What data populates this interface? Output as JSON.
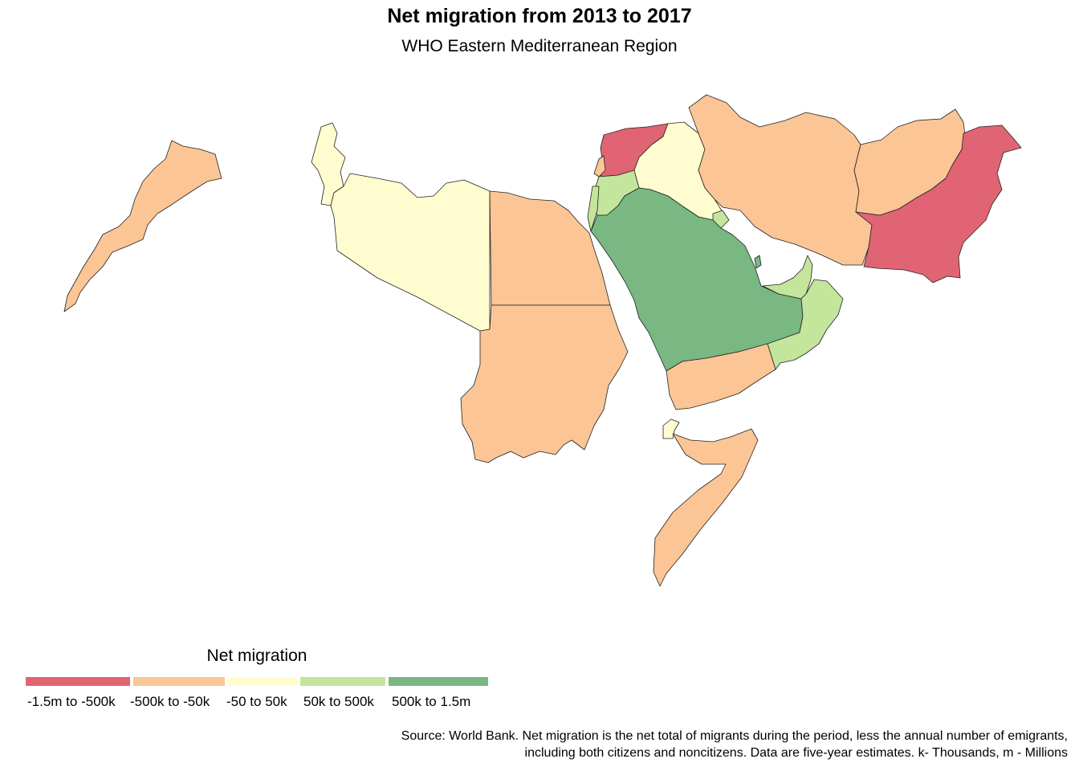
{
  "title": "Net migration from 2013 to 2017",
  "subtitle": "WHO Eastern Mediterranean Region",
  "legend": {
    "title": "Net migration",
    "items": [
      {
        "label": "-1.5m to -500k",
        "color": "#e06473"
      },
      {
        "label": "-500k to -50k",
        "color": "#fbc595"
      },
      {
        "label": "-50 to 50k",
        "color": "#fffdd0"
      },
      {
        "label": "50k to 500k",
        "color": "#c4e59c"
      },
      {
        "label": "500k to  1.5m",
        "color": "#79b783"
      }
    ]
  },
  "source": {
    "line1": "Source: World Bank. Net migration is the net total of migrants during the period, less the annual number of emigrants,",
    "line2": "including both citizens and noncitizens. Data are five-year estimates. k- Thousands, m - Millions"
  },
  "countries": [
    {
      "name": "Morocco",
      "class": "-500k to -50k"
    },
    {
      "name": "Tunisia",
      "class": "-50 to 50k"
    },
    {
      "name": "Libya",
      "class": "-50 to 50k"
    },
    {
      "name": "Egypt",
      "class": "-500k to -50k"
    },
    {
      "name": "Sudan",
      "class": "-500k to -50k"
    },
    {
      "name": "Djibouti",
      "class": "-50 to 50k"
    },
    {
      "name": "Somalia",
      "class": "-500k to -50k"
    },
    {
      "name": "Syria",
      "class": "-1.5m to -500k"
    },
    {
      "name": "Lebanon",
      "class": "-500k to -50k"
    },
    {
      "name": "Jordan",
      "class": "50k to 500k"
    },
    {
      "name": "Palestine",
      "class": "50k to 500k"
    },
    {
      "name": "Iraq",
      "class": "-50 to 50k"
    },
    {
      "name": "Kuwait",
      "class": "50k to 500k"
    },
    {
      "name": "Saudi Arabia",
      "class": "500k to  1.5m"
    },
    {
      "name": "Bahrain",
      "class": "500k to  1.5m"
    },
    {
      "name": "Qatar",
      "class": "50k to 500k"
    },
    {
      "name": "United Arab Emirates",
      "class": "50k to 500k"
    },
    {
      "name": "Oman",
      "class": "50k to 500k"
    },
    {
      "name": "Yemen",
      "class": "-500k to -50k"
    },
    {
      "name": "Iran",
      "class": "-500k to -50k"
    },
    {
      "name": "Afghanistan",
      "class": "-500k to -50k"
    },
    {
      "name": "Pakistan",
      "class": "-1.5m to -500k"
    }
  ]
}
